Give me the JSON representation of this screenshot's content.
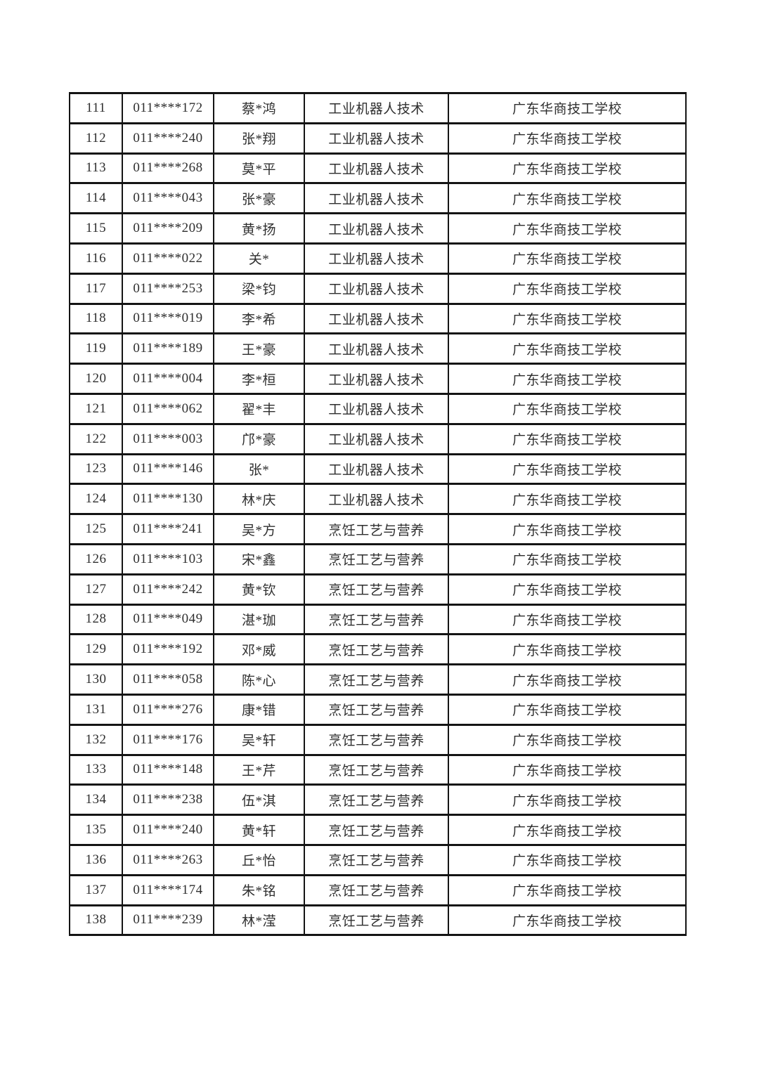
{
  "page": {
    "background_color": "#ffffff",
    "text_color": "#2f2f2f",
    "border_color": "#141414"
  },
  "table": {
    "column_keys": [
      "index",
      "id",
      "name",
      "major",
      "school"
    ],
    "rows": [
      [
        "111",
        "011****172",
        "蔡*鸿",
        "工业机器人技术",
        "广东华商技工学校"
      ],
      [
        "112",
        "011****240",
        "张*翔",
        "工业机器人技术",
        "广东华商技工学校"
      ],
      [
        "113",
        "011****268",
        "莫*平",
        "工业机器人技术",
        "广东华商技工学校"
      ],
      [
        "114",
        "011****043",
        "张*豪",
        "工业机器人技术",
        "广东华商技工学校"
      ],
      [
        "115",
        "011****209",
        "黄*扬",
        "工业机器人技术",
        "广东华商技工学校"
      ],
      [
        "116",
        "011****022",
        "关*",
        "工业机器人技术",
        "广东华商技工学校"
      ],
      [
        "117",
        "011****253",
        "梁*钧",
        "工业机器人技术",
        "广东华商技工学校"
      ],
      [
        "118",
        "011****019",
        "李*希",
        "工业机器人技术",
        "广东华商技工学校"
      ],
      [
        "119",
        "011****189",
        "王*豪",
        "工业机器人技术",
        "广东华商技工学校"
      ],
      [
        "120",
        "011****004",
        "李*桓",
        "工业机器人技术",
        "广东华商技工学校"
      ],
      [
        "121",
        "011****062",
        "翟*丰",
        "工业机器人技术",
        "广东华商技工学校"
      ],
      [
        "122",
        "011****003",
        "邝*豪",
        "工业机器人技术",
        "广东华商技工学校"
      ],
      [
        "123",
        "011****146",
        "张*",
        "工业机器人技术",
        "广东华商技工学校"
      ],
      [
        "124",
        "011****130",
        "林*庆",
        "工业机器人技术",
        "广东华商技工学校"
      ],
      [
        "125",
        "011****241",
        "吴*方",
        "烹饪工艺与营养",
        "广东华商技工学校"
      ],
      [
        "126",
        "011****103",
        "宋*鑫",
        "烹饪工艺与营养",
        "广东华商技工学校"
      ],
      [
        "127",
        "011****242",
        "黄*钦",
        "烹饪工艺与营养",
        "广东华商技工学校"
      ],
      [
        "128",
        "011****049",
        "湛*珈",
        "烹饪工艺与营养",
        "广东华商技工学校"
      ],
      [
        "129",
        "011****192",
        "邓*威",
        "烹饪工艺与营养",
        "广东华商技工学校"
      ],
      [
        "130",
        "011****058",
        "陈*心",
        "烹饪工艺与营养",
        "广东华商技工学校"
      ],
      [
        "131",
        "011****276",
        "康*错",
        "烹饪工艺与营养",
        "广东华商技工学校"
      ],
      [
        "132",
        "011****176",
        "吴*轩",
        "烹饪工艺与营养",
        "广东华商技工学校"
      ],
      [
        "133",
        "011****148",
        "王*芹",
        "烹饪工艺与营养",
        "广东华商技工学校"
      ],
      [
        "134",
        "011****238",
        "伍*淇",
        "烹饪工艺与营养",
        "广东华商技工学校"
      ],
      [
        "135",
        "011****240",
        "黄*轩",
        "烹饪工艺与营养",
        "广东华商技工学校"
      ],
      [
        "136",
        "011****263",
        "丘*怡",
        "烹饪工艺与营养",
        "广东华商技工学校"
      ],
      [
        "137",
        "011****174",
        "朱*铭",
        "烹饪工艺与营养",
        "广东华商技工学校"
      ],
      [
        "138",
        "011****239",
        "林*滢",
        "烹饪工艺与营养",
        "广东华商技工学校"
      ]
    ]
  }
}
